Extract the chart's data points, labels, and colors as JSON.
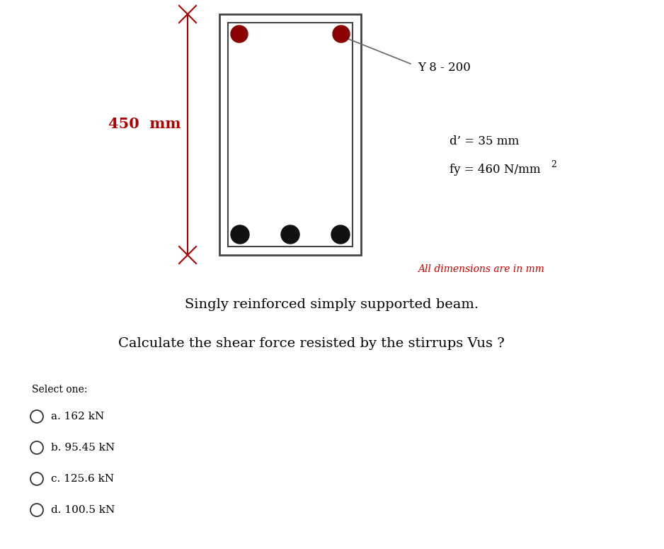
{
  "bg_color": "#ffffff",
  "dim_line_color": "#aa0000",
  "beam_color": "#333333",
  "rebar_top_color": "#8b0000",
  "rebar_bottom_color": "#111111",
  "label_450": "450  mm",
  "label_Y8": "Y 8 - 200",
  "label_d_prime": "d’ = 35 mm",
  "label_fy": "fy = 460 N/mm",
  "label_all_dim": "All dimensions are in mm",
  "label_singly": "Singly reinforced simply supported beam.",
  "label_calculate": "Calculate the shear force resisted by the stirrups Vus ?",
  "label_select": "Select one:",
  "options": [
    "a. 162 kN",
    "b. 95.45 kN",
    "c. 125.6 kN",
    "d. 100.5 kN"
  ],
  "fig_width": 9.38,
  "fig_height": 7.75
}
